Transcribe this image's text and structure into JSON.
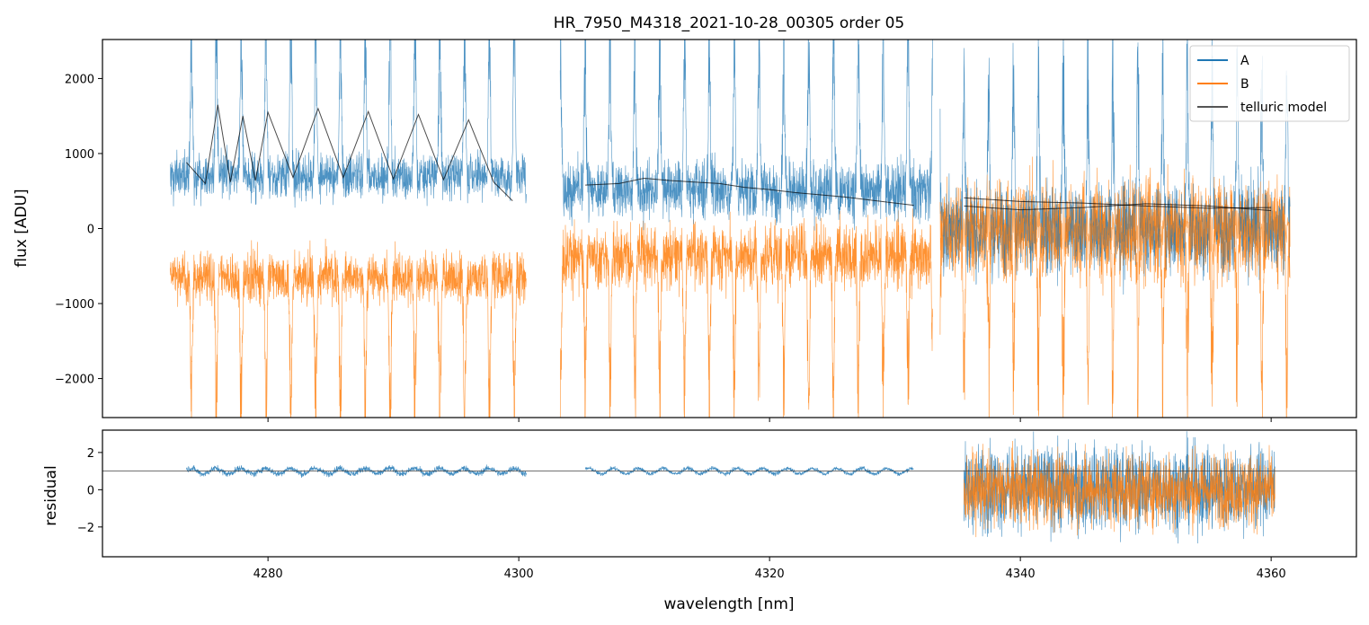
{
  "figure": {
    "title": "HR_7950_M4318_2021-10-28_00305  order 05"
  },
  "chart_data": [
    {
      "panel": "main",
      "type": "line",
      "title": "HR_7950_M4318_2021-10-28_00305  order 05",
      "xlabel": "",
      "ylabel": "flux [ADU]",
      "xlim": [
        4266.8,
        4366.8
      ],
      "ylim": [
        -2520,
        2520
      ],
      "yticks": [
        -2000,
        -1000,
        0,
        1000,
        2000
      ],
      "ytick_labels": [
        "−2000",
        "−1000",
        "0",
        "1000",
        "2000"
      ],
      "xticks": [
        4280,
        4300,
        4320,
        4340,
        4360
      ],
      "show_xtick_labels": false,
      "grid": false,
      "legend": {
        "placement": "top-right",
        "entries": [
          "A",
          "B",
          "telluric model"
        ]
      },
      "colors": {
        "A": "#1f77b4",
        "B": "#ff7f0e",
        "telluric": "#000000"
      },
      "segments": [
        {
          "x_range": [
            4272.2,
            4300.6
          ],
          "A_baseline": 700,
          "B_baseline": -650,
          "comb_period_nm": 1.98,
          "comb_start_nm": 4273.9,
          "noise": 220
        },
        {
          "x_range": [
            4303.3,
            4333.0
          ],
          "A_baseline": 500,
          "B_baseline": -350,
          "comb_period_nm": 1.98,
          "comb_start_nm": 4305.3,
          "noise": 280
        },
        {
          "x_range": [
            4333.6,
            4361.5
          ],
          "A_baseline": 0,
          "B_baseline": 0,
          "comb_period_nm": 1.98,
          "comb_start_nm": 4335.5,
          "noise": 420
        }
      ],
      "series": [
        {
          "name": "telluric model",
          "segments": [
            {
              "x": [
                4273.5,
                4275,
                4276,
                4277,
                4278,
                4279,
                4280,
                4282,
                4284,
                4286,
                4288,
                4290,
                4292,
                4294,
                4296,
                4298,
                4299.5
              ],
              "y": [
                880,
                600,
                1650,
                620,
                1500,
                640,
                1550,
                680,
                1600,
                680,
                1560,
                660,
                1520,
                650,
                1450,
                620,
                370
              ]
            },
            {
              "x": [
                4305.3,
                4308,
                4310,
                4312,
                4314,
                4316,
                4318,
                4320,
                4322,
                4324,
                4326,
                4328,
                4330,
                4331.5
              ],
              "y": [
                580,
                600,
                670,
                640,
                620,
                600,
                550,
                520,
                480,
                450,
                420,
                380,
                340,
                310
              ]
            },
            {
              "x": [
                4335.5,
                4340,
                4345,
                4350,
                4355,
                4360
              ],
              "y": [
                410,
                360,
                340,
                300,
                270,
                280
              ]
            },
            {
              "x": [
                4335.5,
                4340,
                4345,
                4350,
                4355,
                4360
              ],
              "y": [
                300,
                250,
                280,
                330,
                300,
                240
              ]
            }
          ]
        }
      ]
    },
    {
      "panel": "residual",
      "type": "line",
      "xlabel": "wavelength [nm]",
      "ylabel": "residual",
      "xlim": [
        4266.8,
        4366.8
      ],
      "ylim": [
        -3.6,
        3.2
      ],
      "yticks": [
        -2,
        0,
        2
      ],
      "ytick_labels": [
        "−2",
        "0",
        "2"
      ],
      "xticks": [
        4280,
        4300,
        4320,
        4340,
        4360
      ],
      "xtick_labels": [
        "4280",
        "4300",
        "4320",
        "4340",
        "4360"
      ],
      "reference_line": 1,
      "grid": false,
      "segments": [
        {
          "x_range": [
            4273.5,
            4300.6
          ],
          "level": 1.0,
          "noise": 0.12,
          "series": "A"
        },
        {
          "x_range": [
            4305.3,
            4331.5
          ],
          "level": 1.0,
          "noise": 0.08,
          "series": "A"
        },
        {
          "x_range": [
            4335.5,
            4360.3
          ],
          "level": 0.1,
          "noise": 1.6,
          "series": "A"
        },
        {
          "x_range": [
            4335.5,
            4360.3
          ],
          "level": 0.0,
          "noise": 1.4,
          "series": "B"
        }
      ]
    }
  ]
}
